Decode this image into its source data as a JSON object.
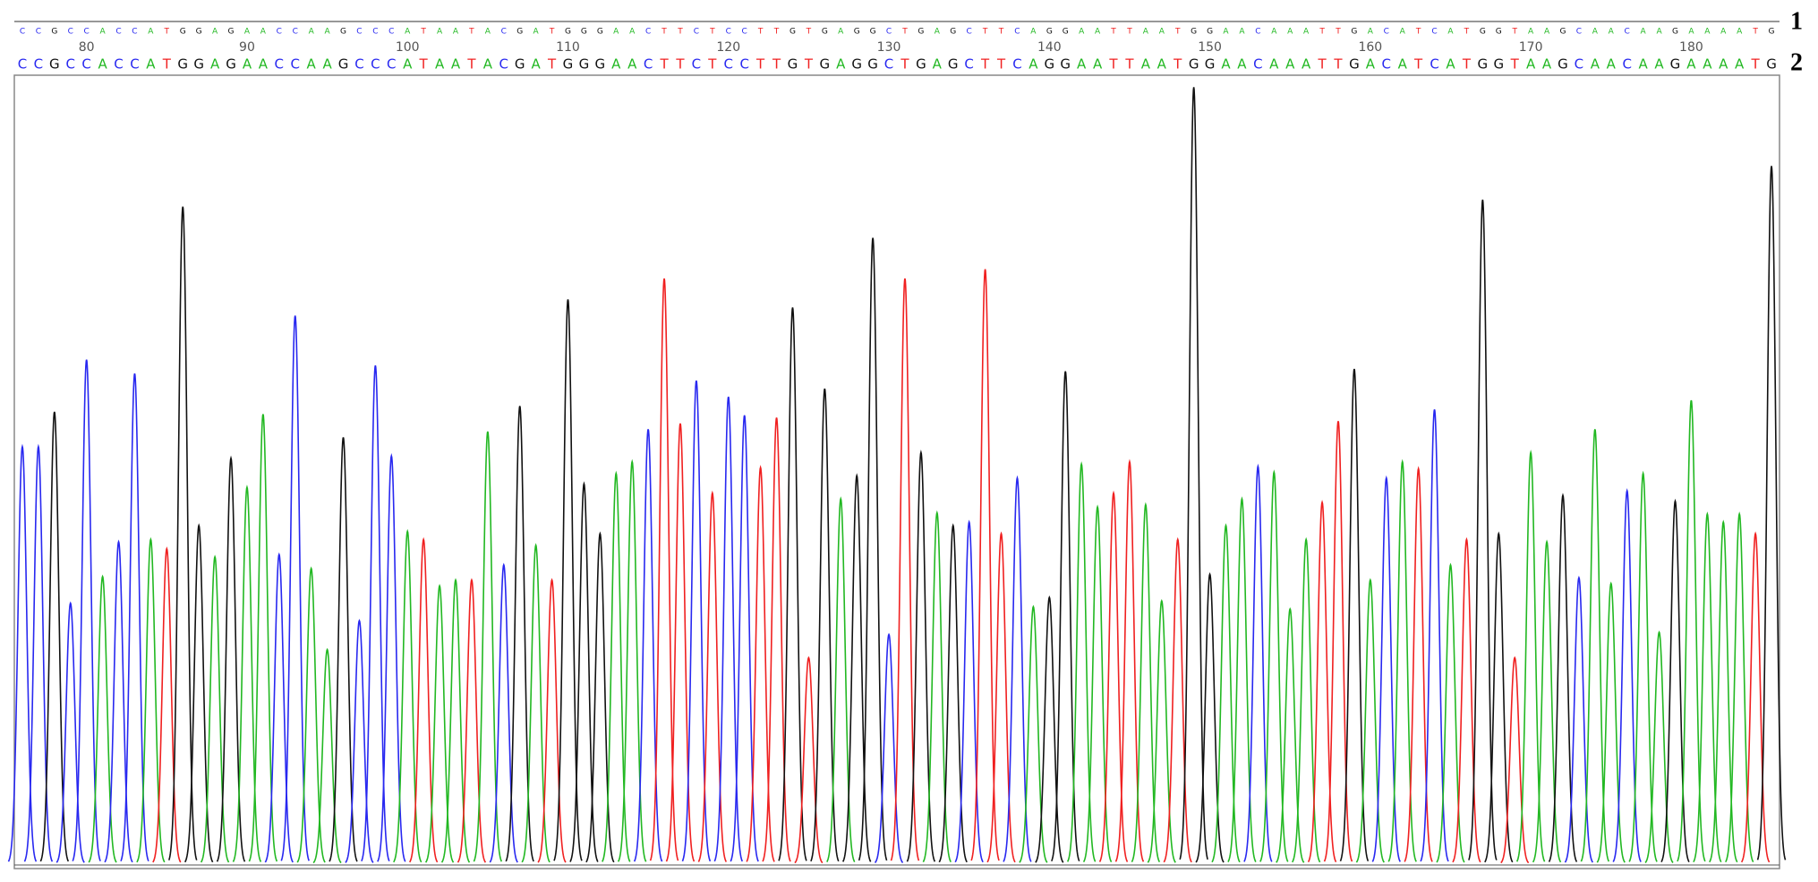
{
  "chart_data": {
    "type": "chromatogram",
    "sequences": [
      {
        "label": "1",
        "bases": [
          "C",
          "C",
          "G",
          "C",
          "C",
          "A",
          "C",
          "C",
          "A",
          "T",
          "G",
          "G",
          "A",
          "G",
          "A",
          "A",
          "C",
          "C",
          "A",
          "A",
          "G",
          "C",
          "C",
          "C",
          "A",
          "T",
          "A",
          "A",
          "T",
          "A",
          "C",
          "G",
          "A",
          "T",
          "G",
          "G",
          "G",
          "A",
          "A",
          "C",
          "T",
          "T",
          "C",
          "T",
          "C",
          "C",
          "T",
          "T",
          "G",
          "T",
          "G",
          "A",
          "G",
          "G",
          "C",
          "T",
          "G",
          "A",
          "G",
          "C",
          "T",
          "T",
          "C",
          "A",
          "G",
          "G",
          "A",
          "A",
          "T",
          "T",
          "A",
          "A",
          "T",
          "G",
          "G",
          "A",
          "A",
          "C",
          "A",
          "A",
          "A",
          "T",
          "T",
          "G",
          "A",
          "C",
          "A",
          "T",
          "C",
          "A",
          "T",
          "G",
          "G",
          "T",
          "A",
          "A",
          "G",
          "C",
          "A",
          "A",
          "C",
          "A",
          "A",
          "G",
          "A",
          "A",
          "A",
          "A",
          "T",
          "G"
        ]
      },
      {
        "label": "2",
        "bases": [
          "C",
          "C",
          "G",
          "C",
          "C",
          "A",
          "C",
          "C",
          "A",
          "T",
          "G",
          "G",
          "A",
          "G",
          "A",
          "A",
          "C",
          "C",
          "A",
          "A",
          "G",
          "C",
          "C",
          "C",
          "A",
          "T",
          "A",
          "A",
          "T",
          "A",
          "C",
          "G",
          "A",
          "T",
          "G",
          "G",
          "G",
          "A",
          "A",
          "C",
          "T",
          "T",
          "C",
          "T",
          "C",
          "C",
          "T",
          "T",
          "G",
          "T",
          "G",
          "A",
          "G",
          "G",
          "C",
          "T",
          "G",
          "A",
          "G",
          "C",
          "T",
          "T",
          "C",
          "A",
          "G",
          "G",
          "A",
          "A",
          "T",
          "T",
          "A",
          "A",
          "T",
          "G",
          "G",
          "A",
          "A",
          "C",
          "A",
          "A",
          "A",
          "T",
          "T",
          "G",
          "A",
          "C",
          "A",
          "T",
          "C",
          "A",
          "T",
          "G",
          "G",
          "T",
          "A",
          "A",
          "G",
          "C",
          "A",
          "A",
          "C",
          "A",
          "A",
          "G",
          "A",
          "A",
          "A",
          "A",
          "T",
          "G"
        ]
      }
    ],
    "base_colors": {
      "A": "#22b822",
      "C": "#2828f0",
      "G": "#111111",
      "T": "#f02020"
    },
    "values": [
      360,
      360,
      390,
      225,
      435,
      248,
      278,
      423,
      280,
      272,
      567,
      292,
      265,
      350,
      325,
      388,
      267,
      473,
      255,
      185,
      368,
      210,
      430,
      352,
      287,
      280,
      240,
      245,
      245,
      373,
      258,
      395,
      275,
      245,
      487,
      328,
      285,
      337,
      347,
      375,
      505,
      380,
      417,
      320,
      403,
      387,
      342,
      385,
      480,
      178,
      410,
      315,
      335,
      540,
      198,
      505,
      355,
      303,
      292,
      295,
      513,
      285,
      333,
      222,
      230,
      425,
      345,
      308,
      320,
      347,
      310,
      227,
      280,
      670,
      250,
      292,
      315,
      343,
      338,
      220,
      280,
      312,
      382,
      427,
      245,
      333,
      347,
      341,
      392,
      258,
      280,
      573,
      285,
      178,
      355,
      278,
      318,
      247,
      375,
      242,
      322,
      337,
      200,
      313,
      400,
      302,
      295,
      302,
      285,
      602
    ],
    "xlim": [
      75.5,
      185.5
    ],
    "xticks": [
      80,
      90,
      100,
      110,
      120,
      130,
      140,
      150,
      160,
      170,
      180
    ],
    "ylim": [
      0,
      700
    ]
  }
}
